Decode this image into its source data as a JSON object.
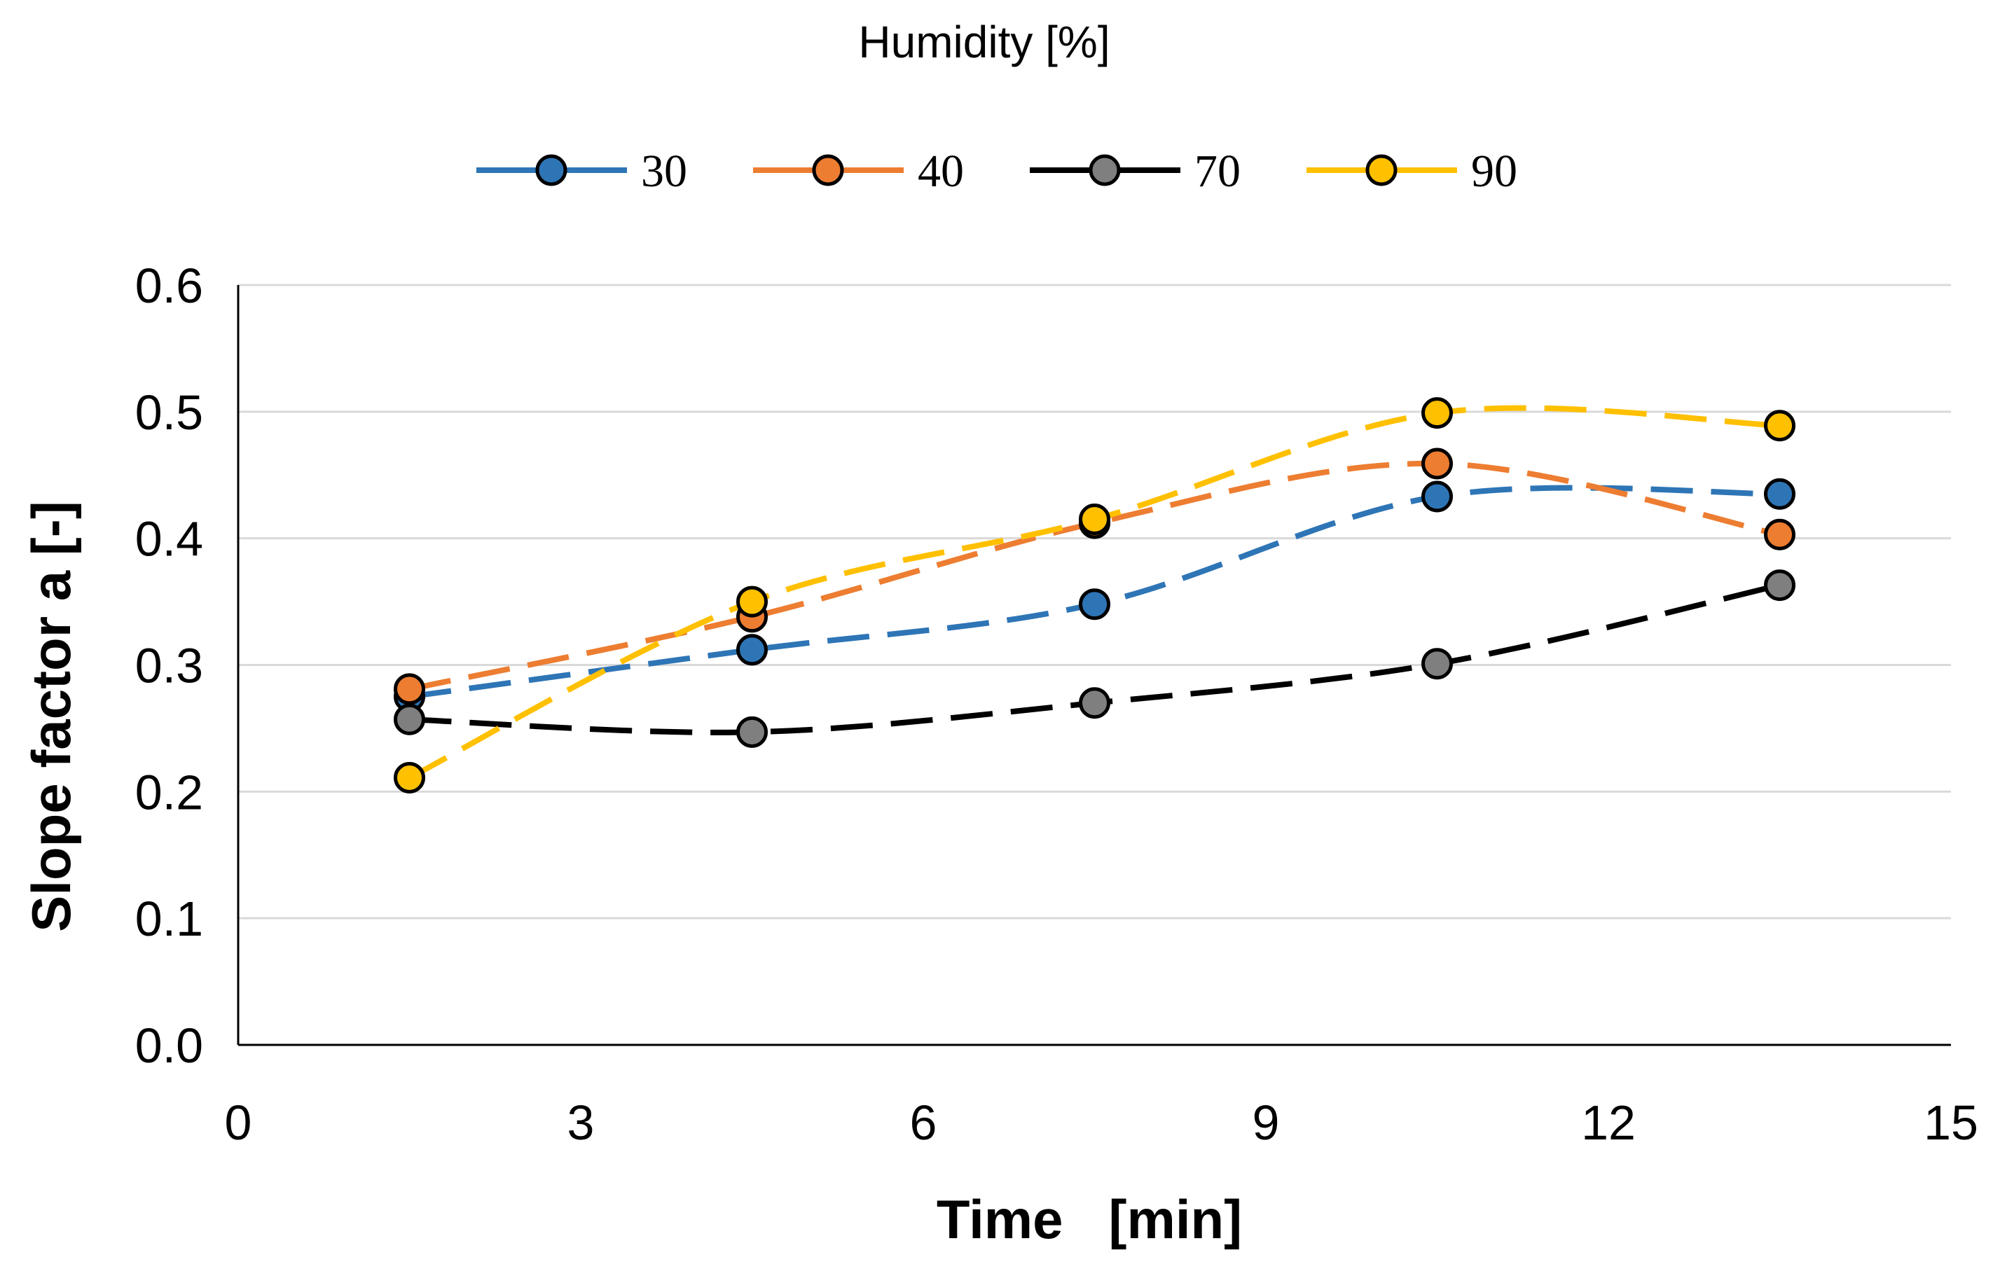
{
  "chart_data": {
    "type": "line",
    "legend_title": "Humidity  [%]",
    "legend_position": "top",
    "xlabel": "Time   [min]",
    "ylabel": "Slope factor a [-]",
    "xlim": [
      0,
      15
    ],
    "ylim": [
      0,
      0.6
    ],
    "xticks": [
      0,
      3,
      6,
      9,
      12,
      15
    ],
    "yticks": [
      0.0,
      0.1,
      0.2,
      0.3,
      0.4,
      0.5,
      0.6
    ],
    "xtick_labels": [
      "0",
      "3",
      "6",
      "9",
      "12",
      "15"
    ],
    "ytick_labels": [
      "0.0",
      "0.1",
      "0.2",
      "0.3",
      "0.4",
      "0.5",
      "0.6"
    ],
    "grid": "horizontal",
    "x": [
      1.5,
      4.5,
      7.5,
      10.5,
      13.5
    ],
    "series": [
      {
        "name": "30",
        "color": "#2E75B6",
        "values": [
          0.275,
          0.312,
          0.348,
          0.433,
          0.435
        ]
      },
      {
        "name": "40",
        "color": "#ED7D31",
        "values": [
          0.281,
          0.338,
          0.412,
          0.459,
          0.403
        ]
      },
      {
        "name": "70",
        "color": "#000000",
        "marker_color": "#7F7F7F",
        "values": [
          0.257,
          0.247,
          0.27,
          0.301,
          0.363
        ]
      },
      {
        "name": "90",
        "color": "#FFC000",
        "values": [
          0.211,
          0.35,
          0.415,
          0.499,
          0.489
        ]
      }
    ]
  }
}
